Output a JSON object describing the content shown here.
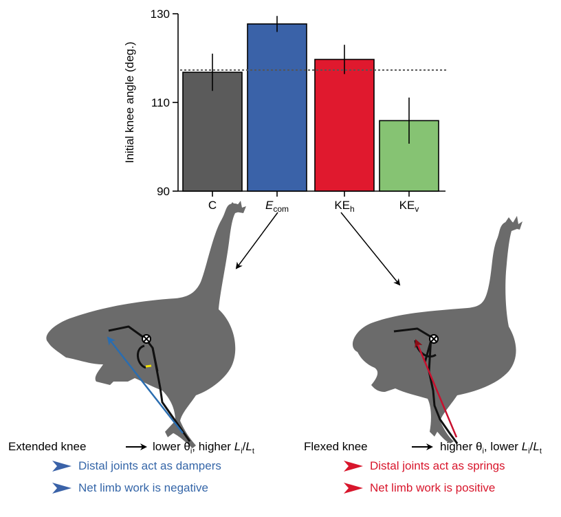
{
  "chart_data": {
    "type": "bar",
    "ylabel": "Initial knee angle (deg.)",
    "ylim": [
      90,
      130
    ],
    "yticks": [
      "90",
      "110",
      "130"
    ],
    "categories": [
      {
        "label": "C",
        "sub": ""
      },
      {
        "label": "E",
        "sub": "com"
      },
      {
        "label": "KE",
        "sub": "h"
      },
      {
        "label": "KE",
        "sub": "v"
      }
    ],
    "values": [
      116.8,
      127.7,
      119.7,
      105.9
    ],
    "errors": [
      4.2,
      1.8,
      3.3,
      5.2
    ],
    "colors": [
      "#5b5b5b",
      "#3a62a8",
      "#e0192e",
      "#86c373"
    ],
    "reference_line": 117.3
  },
  "captions": {
    "left_condition": "Extended knee",
    "left_result_a": "lower θ",
    "left_result_sub_a": "i",
    "left_result_b": ", higher ",
    "left_L1": "L",
    "left_L1_sub": "i",
    "left_slash": "/",
    "left_L2": "L",
    "left_L2_sub": "t",
    "left_line1": "Distal joints act as dampers",
    "left_line2": "Net limb work is negative",
    "right_condition": "Flexed knee",
    "right_result_a": "higher θ",
    "right_result_sub_a": "i",
    "right_result_b": ", lower ",
    "right_L1": "L",
    "right_L1_sub": "i",
    "right_slash": "/",
    "right_L2": "L",
    "right_L2_sub": "t",
    "right_line1": "Distal joints act as springs",
    "right_line2": "Net limb work is positive"
  },
  "colors": {
    "blue_text": "#3566a8",
    "red_text": "#d8162c",
    "bird_fill": "#6b6b6b",
    "leg_line": "#111111",
    "blue_vector": "#2a6db0",
    "red_vector": "#c8102e",
    "knee_arc_highlight": "#f5e400"
  }
}
